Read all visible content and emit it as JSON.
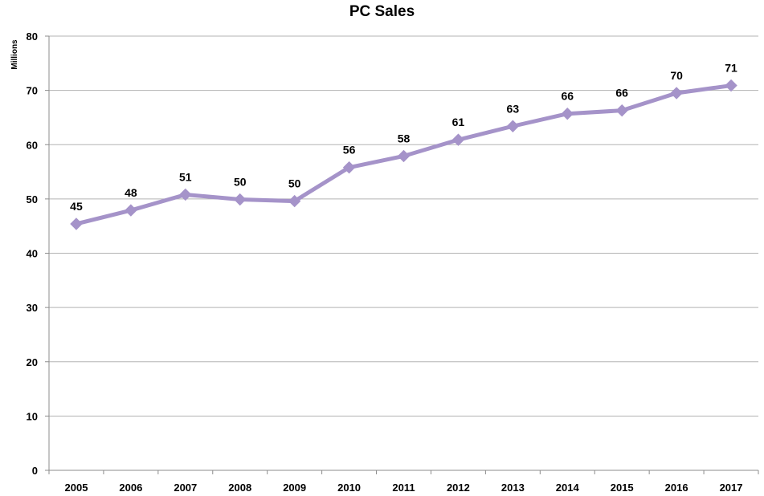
{
  "chart_data": {
    "type": "line",
    "title": "PC Sales",
    "xlabel": "",
    "ylabel": "Millions",
    "categories": [
      "2005",
      "2006",
      "2007",
      "2008",
      "2009",
      "2010",
      "2011",
      "2012",
      "2013",
      "2014",
      "2015",
      "2016",
      "2017"
    ],
    "series": [
      {
        "values": [
          45.4,
          47.9,
          50.8,
          49.9,
          49.6,
          55.8,
          57.9,
          60.9,
          63.4,
          65.7,
          66.3,
          69.5,
          70.9
        ],
        "data_labels": [
          "45",
          "48",
          "51",
          "50",
          "50",
          "56",
          "58",
          "61",
          "63",
          "66",
          "66",
          "70",
          "71"
        ],
        "color": "#A593C9",
        "marker": "diamond"
      }
    ],
    "ylim": [
      0,
      80
    ],
    "yticks": [
      "0",
      "10",
      "20",
      "30",
      "40",
      "50",
      "60",
      "70",
      "80"
    ],
    "grid": true,
    "legend": "none",
    "gridline_color": "#B3B3B3",
    "axis_color": "#8C8C8C"
  }
}
